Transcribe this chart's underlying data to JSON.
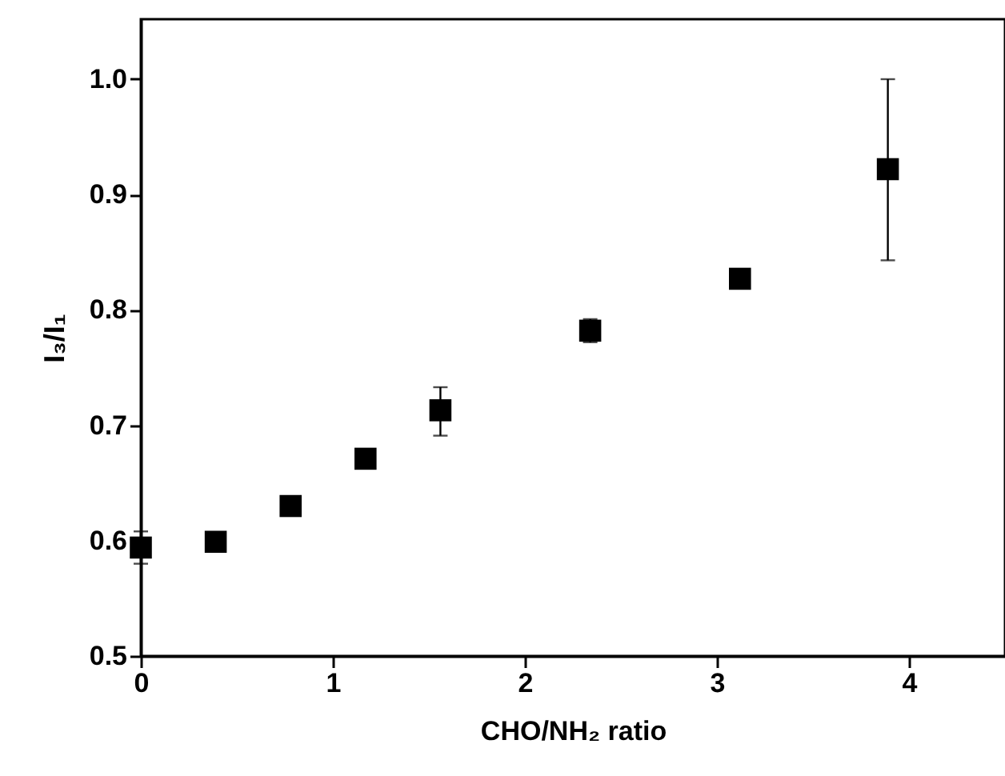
{
  "chart_data": {
    "type": "scatter",
    "xlabel": "CHO/NH₂ ratio",
    "ylabel": "I₃/I₁",
    "x": [
      0,
      0.39,
      0.78,
      1.17,
      1.56,
      2.34,
      3.12,
      3.89
    ],
    "series": [
      {
        "color": "#000000",
        "values": [
          0.594,
          0.599,
          0.63,
          0.671,
          0.713,
          0.782,
          0.827,
          0.922
        ],
        "errors": [
          0.014,
          null,
          null,
          null,
          [
            0.691,
            0.733
          ],
          0.01,
          0.006,
          [
            0.843,
            1.0
          ]
        ]
      }
    ],
    "xlim": [
      0,
      4.5
    ],
    "xticks": [
      0,
      1,
      2,
      3,
      4
    ],
    "ylim": [
      0.5,
      1.052
    ],
    "yticks": [
      0.5,
      0.6,
      0.7,
      0.8,
      0.9,
      {
        "value": 1,
        "label": "1.0"
      }
    ],
    "marker": "square",
    "grid": false
  }
}
